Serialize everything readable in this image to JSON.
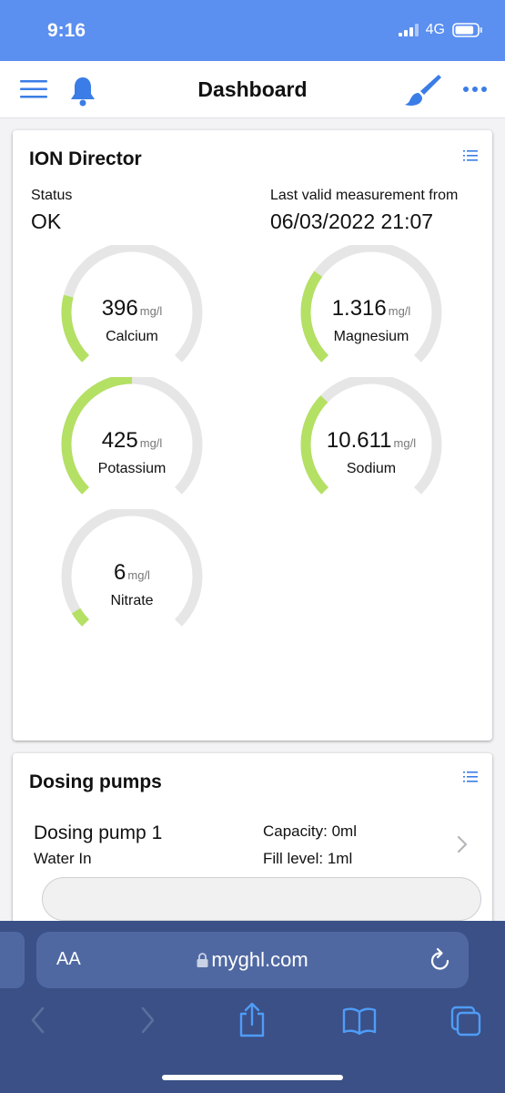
{
  "status_bar": {
    "time": "9:16",
    "network": "4G",
    "battery_level": 0.85
  },
  "nav": {
    "title": "Dashboard"
  },
  "ion_director": {
    "title": "ION Director",
    "status_label": "Status",
    "status_value": "OK",
    "measurement_label": "Last valid measurement from",
    "measurement_value": "06/03/2022 21:07",
    "gauges": [
      {
        "name": "Calcium",
        "value": "396",
        "unit": "mg/l",
        "fill": 0.22
      },
      {
        "name": "Magnesium",
        "value": "1.316",
        "unit": "mg/l",
        "fill": 0.3
      },
      {
        "name": "Potassium",
        "value": "425",
        "unit": "mg/l",
        "fill": 0.5
      },
      {
        "name": "Sodium",
        "value": "10.611",
        "unit": "mg/l",
        "fill": 0.33
      },
      {
        "name": "Nitrate",
        "value": "6",
        "unit": "mg/l",
        "fill": 0.05
      }
    ],
    "colors": {
      "gauge_fill": "#b4e064",
      "gauge_track": "#e6e6e6"
    }
  },
  "dosing_pumps": {
    "title": "Dosing pumps",
    "pump": {
      "name": "Dosing pump 1",
      "sub": "Water In",
      "capacity": "Capacity: 0ml",
      "fill_level": "Fill level: 1ml",
      "fill_fraction": 0
    }
  },
  "browser": {
    "text_size_label": "AA",
    "url": "myghl.com"
  },
  "colors": {
    "accent": "#3b7de6",
    "status_bar": "#5b8ff0",
    "browser": "#3a5086"
  }
}
